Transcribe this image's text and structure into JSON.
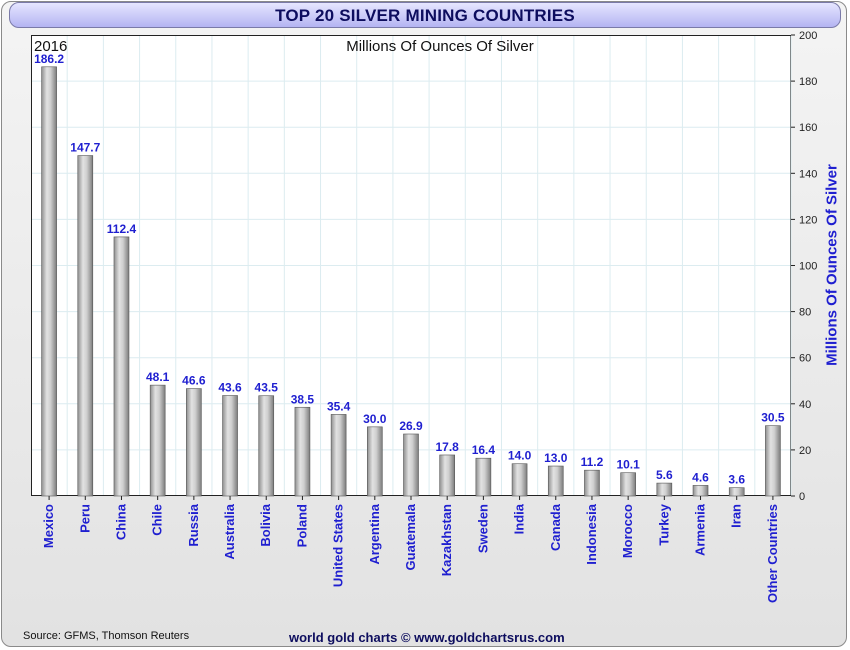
{
  "header": {
    "title": "TOP 20 SILVER MINING COUNTRIES"
  },
  "chart_data": {
    "type": "bar",
    "year_label": "2016",
    "title": "Millions Of Ounces Of Silver",
    "ylabel": "Millions Of Ounces Of Silver",
    "ylim": [
      0,
      200
    ],
    "yticks": [
      0,
      20,
      40,
      60,
      80,
      100,
      120,
      140,
      160,
      180,
      200
    ],
    "grid": true,
    "categories": [
      "Mexico",
      "Peru",
      "China",
      "Chile",
      "Russia",
      "Australia",
      "Bolivia",
      "Poland",
      "United States",
      "Argentina",
      "Guatemala",
      "Kazakhstan",
      "Sweden",
      "India",
      "Canada",
      "Indonesia",
      "Morocco",
      "Turkey",
      "Armenia",
      "Iran",
      "Other Countries"
    ],
    "values": [
      186.2,
      147.7,
      112.4,
      48.1,
      46.6,
      43.6,
      43.5,
      38.5,
      35.4,
      30.0,
      26.9,
      17.8,
      16.4,
      14.0,
      13.0,
      11.2,
      10.1,
      5.6,
      4.6,
      3.6,
      30.5
    ],
    "value_labels": [
      "186.2",
      "147.7",
      "112.4",
      "48.1",
      "46.6",
      "43.6",
      "43.5",
      "38.5",
      "35.4",
      "30.0",
      "26.9",
      "17.8",
      "16.4",
      "14.0",
      "13.0",
      "11.2",
      "10.1",
      "5.6",
      "4.6",
      "3.6",
      "30.5"
    ],
    "colors": {
      "bar": "#b8b8b8",
      "bar_edge": "#555555",
      "label": "#1f1fd0",
      "grid": "#dcecf0"
    }
  },
  "footer": {
    "source": "Source: GFMS, Thomson Reuters",
    "credit": "world gold charts © www.goldchartsrus.com"
  }
}
